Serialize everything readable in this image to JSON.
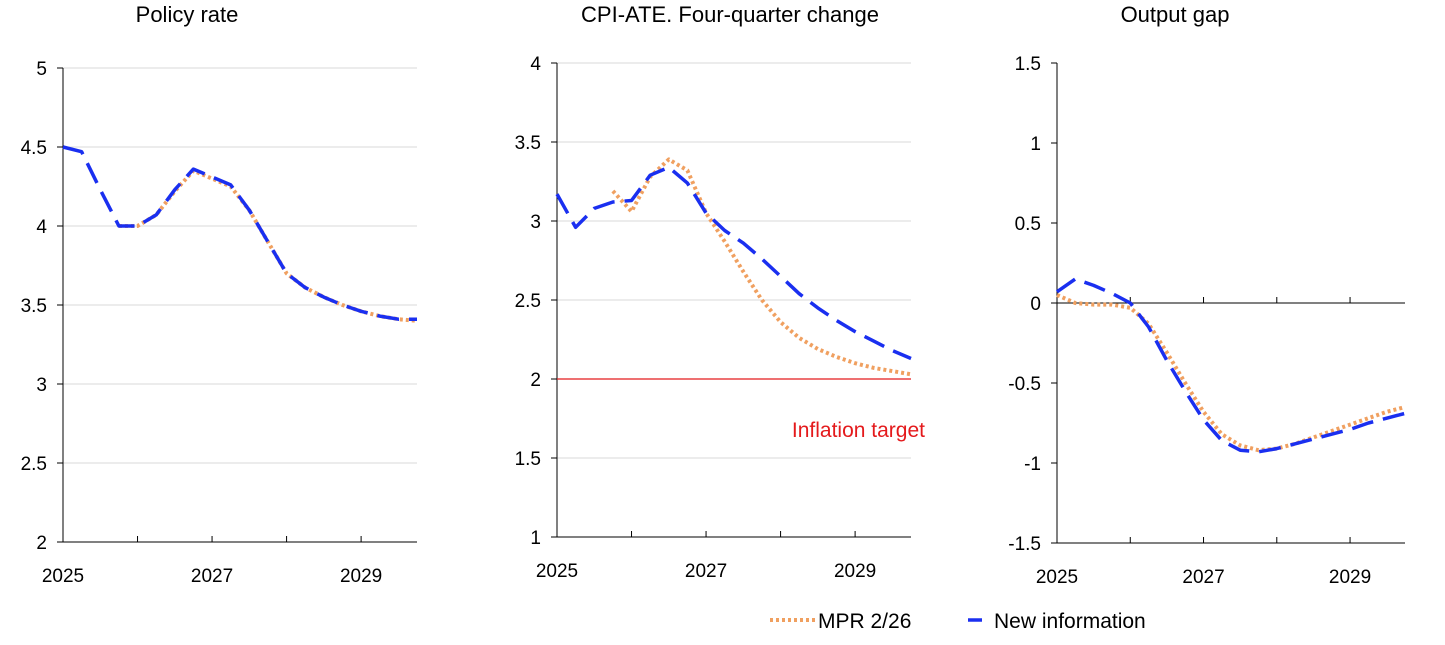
{
  "colors": {
    "mpr": "#f0a060",
    "new_info": "#1a2ff0",
    "target": "#e41a1c",
    "grid": "#d9d9d9",
    "axis": "#000000"
  },
  "legend": {
    "position": "bottom-right",
    "items": [
      {
        "label": "MPR 2/26",
        "series": "mpr"
      },
      {
        "label": "New information",
        "series": "new_info"
      }
    ]
  },
  "chart_data": [
    {
      "type": "line",
      "title": "Policy rate",
      "xlim": [
        2025,
        2029.75
      ],
      "ylim": [
        2,
        5
      ],
      "yticks": [
        "2",
        "2.5",
        "3",
        "3.5",
        "4",
        "4.5",
        "5"
      ],
      "xticks": [
        "2025",
        "2027",
        "2029"
      ],
      "grid": true,
      "zero_line": false,
      "series": [
        {
          "key": "mpr",
          "x": [
            2025.75,
            2026,
            2026.25,
            2026.5,
            2026.75,
            2027,
            2027.25,
            2027.5,
            2027.75,
            2028,
            2028.25,
            2028.5,
            2028.75,
            2029,
            2029.25,
            2029.5,
            2029.75
          ],
          "y": [
            4.0,
            4.0,
            4.07,
            4.22,
            4.35,
            4.3,
            4.25,
            4.1,
            3.9,
            3.7,
            3.61,
            3.55,
            3.5,
            3.46,
            3.43,
            3.41,
            3.4
          ]
        },
        {
          "key": "new_info",
          "x": [
            2025,
            2025.25,
            2025.5,
            2025.75,
            2026,
            2026.25,
            2026.5,
            2026.75,
            2027,
            2027.25,
            2027.5,
            2027.75,
            2028,
            2028.25,
            2028.5,
            2028.75,
            2029,
            2029.25,
            2029.5,
            2029.75
          ],
          "y": [
            4.5,
            4.47,
            4.23,
            4.0,
            4.0,
            4.07,
            4.23,
            4.36,
            4.31,
            4.26,
            4.1,
            3.9,
            3.7,
            3.61,
            3.55,
            3.5,
            3.46,
            3.43,
            3.41,
            3.41
          ]
        }
      ]
    },
    {
      "type": "line",
      "title": "CPI-ATE. Four-quarter change",
      "xlim": [
        2025,
        2029.75
      ],
      "ylim": [
        1,
        4
      ],
      "yticks": [
        "1",
        "1.5",
        "2",
        "2.5",
        "3",
        "3.5",
        "4"
      ],
      "xticks": [
        "2025",
        "2027",
        "2029"
      ],
      "grid": true,
      "zero_line": false,
      "target": {
        "value": 2,
        "label": "Inflation target"
      },
      "series": [
        {
          "key": "mpr",
          "x": [
            2025.75,
            2026,
            2026.25,
            2026.5,
            2026.75,
            2027,
            2027.25,
            2027.5,
            2027.75,
            2028,
            2028.25,
            2028.5,
            2028.75,
            2029,
            2029.25,
            2029.5,
            2029.75
          ],
          "y": [
            3.19,
            3.06,
            3.28,
            3.39,
            3.32,
            3.05,
            2.87,
            2.68,
            2.5,
            2.36,
            2.26,
            2.19,
            2.14,
            2.1,
            2.07,
            2.05,
            2.03
          ]
        },
        {
          "key": "new_info",
          "x": [
            2025,
            2025.25,
            2025.5,
            2025.75,
            2026,
            2026.25,
            2026.5,
            2026.75,
            2027,
            2027.25,
            2027.5,
            2027.75,
            2028,
            2028.25,
            2028.5,
            2028.75,
            2029,
            2029.25,
            2029.5,
            2029.75
          ],
          "y": [
            3.17,
            2.96,
            3.08,
            3.12,
            3.13,
            3.29,
            3.34,
            3.24,
            3.05,
            2.94,
            2.86,
            2.76,
            2.65,
            2.54,
            2.45,
            2.37,
            2.3,
            2.24,
            2.18,
            2.13
          ]
        }
      ]
    },
    {
      "type": "line",
      "title": "Output gap",
      "xlim": [
        2025,
        2029.75
      ],
      "ylim": [
        -1.5,
        1.5
      ],
      "yticks": [
        "-1.5",
        "-1",
        "-0.5",
        "0",
        "0.5",
        "1",
        "1.5"
      ],
      "xticks": [
        "2025",
        "2027",
        "2029"
      ],
      "grid": false,
      "zero_line": true,
      "series": [
        {
          "key": "mpr",
          "x": [
            2025,
            2025.25,
            2025.5,
            2025.75,
            2026,
            2026.25,
            2026.5,
            2026.75,
            2027,
            2027.25,
            2027.5,
            2027.75,
            2028,
            2028.25,
            2028.5,
            2028.75,
            2029,
            2029.25,
            2029.5,
            2029.75
          ],
          "y": [
            0.05,
            0.0,
            -0.01,
            -0.01,
            -0.03,
            -0.13,
            -0.31,
            -0.5,
            -0.68,
            -0.82,
            -0.89,
            -0.92,
            -0.91,
            -0.88,
            -0.84,
            -0.8,
            -0.76,
            -0.72,
            -0.68,
            -0.65
          ]
        },
        {
          "key": "new_info",
          "x": [
            2025,
            2025.25,
            2025.5,
            2025.75,
            2026,
            2026.25,
            2026.5,
            2026.75,
            2027,
            2027.25,
            2027.5,
            2027.75,
            2028,
            2028.25,
            2028.5,
            2028.75,
            2029,
            2029.25,
            2029.5,
            2029.75
          ],
          "y": [
            0.07,
            0.15,
            0.11,
            0.06,
            0.0,
            -0.15,
            -0.36,
            -0.55,
            -0.73,
            -0.86,
            -0.92,
            -0.93,
            -0.91,
            -0.88,
            -0.85,
            -0.82,
            -0.79,
            -0.75,
            -0.72,
            -0.69
          ]
        }
      ]
    }
  ]
}
